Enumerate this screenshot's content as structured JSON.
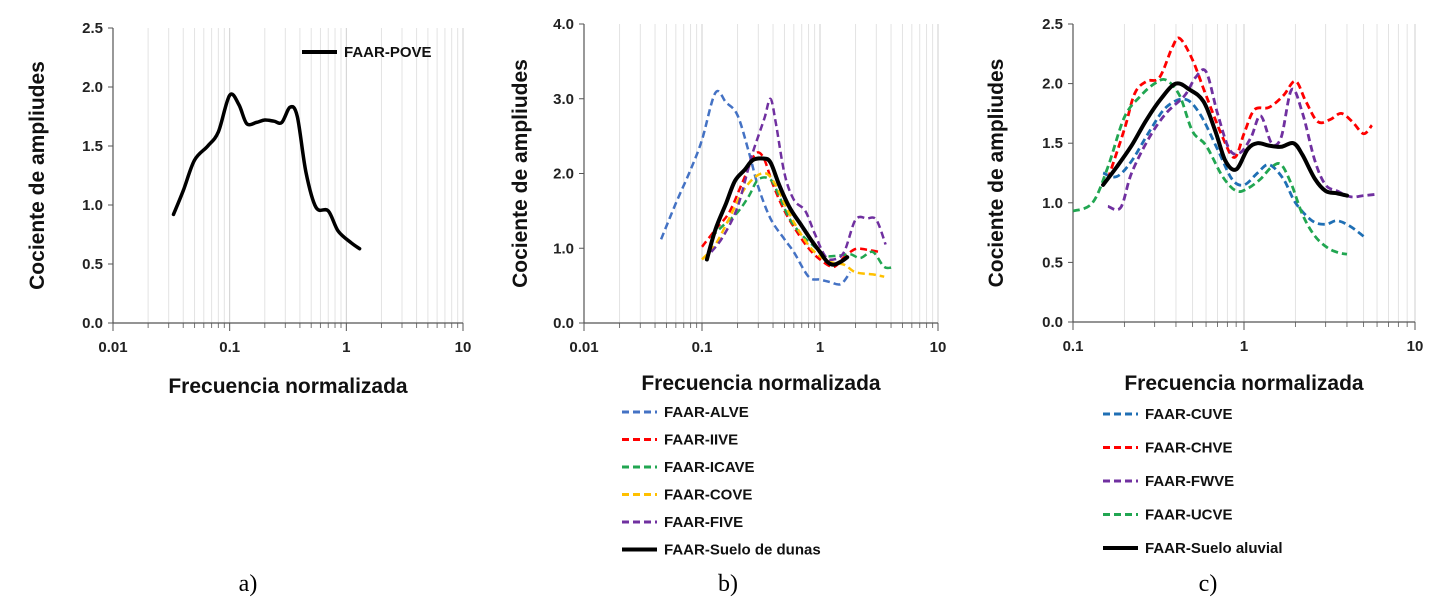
{
  "figure": {
    "captions": [
      "a)",
      "b)",
      "c)"
    ]
  },
  "chart_data": [
    {
      "type": "line",
      "xlabel": "Frecuencia normalizada",
      "ylabel": "Cociente de ampliudes",
      "xscale": "log",
      "xlim": [
        0.01,
        10
      ],
      "ylim": [
        0,
        2.5
      ],
      "xticks": [
        "0.01",
        "0.1",
        "1",
        "10"
      ],
      "yticks": [
        "0.0",
        "0.5",
        "1.0",
        "1.5",
        "2.0",
        "2.5"
      ],
      "legend_position": "top-right",
      "series": [
        {
          "name": "FAAR-POVE",
          "color": "#000000",
          "dash": "solid",
          "width": 3.5,
          "points": [
            [
              0.033,
              0.92
            ],
            [
              0.04,
              1.12
            ],
            [
              0.05,
              1.38
            ],
            [
              0.065,
              1.5
            ],
            [
              0.08,
              1.62
            ],
            [
              0.1,
              1.93
            ],
            [
              0.12,
              1.85
            ],
            [
              0.14,
              1.69
            ],
            [
              0.17,
              1.7
            ],
            [
              0.2,
              1.72
            ],
            [
              0.24,
              1.71
            ],
            [
              0.28,
              1.7
            ],
            [
              0.33,
              1.83
            ],
            [
              0.38,
              1.75
            ],
            [
              0.45,
              1.28
            ],
            [
              0.55,
              0.98
            ],
            [
              0.7,
              0.95
            ],
            [
              0.85,
              0.78
            ],
            [
              1.1,
              0.68
            ],
            [
              1.3,
              0.63
            ]
          ]
        }
      ]
    },
    {
      "type": "line",
      "xlabel": "Frecuencia normalizada",
      "ylabel": "Cociente de ampliudes",
      "xscale": "log",
      "xlim": [
        0.01,
        10
      ],
      "ylim": [
        0,
        4
      ],
      "xticks": [
        "0.01",
        "0.1",
        "1",
        "10"
      ],
      "yticks": [
        "0.0",
        "1.0",
        "2.0",
        "3.0",
        "4.0"
      ],
      "legend_position": "bottom",
      "series": [
        {
          "name": "FAAR-ALVE",
          "color": "#4472C4",
          "dash": "dashed",
          "width": 2.5,
          "points": [
            [
              0.045,
              1.12
            ],
            [
              0.06,
              1.6
            ],
            [
              0.08,
              2.05
            ],
            [
              0.1,
              2.45
            ],
            [
              0.13,
              3.08
            ],
            [
              0.16,
              2.95
            ],
            [
              0.2,
              2.78
            ],
            [
              0.25,
              2.28
            ],
            [
              0.3,
              1.82
            ],
            [
              0.38,
              1.4
            ],
            [
              0.5,
              1.12
            ],
            [
              0.6,
              0.95
            ],
            [
              0.8,
              0.62
            ],
            [
              1.0,
              0.58
            ],
            [
              1.2,
              0.55
            ],
            [
              1.5,
              0.52
            ],
            [
              1.8,
              0.68
            ]
          ]
        },
        {
          "name": "FAAR-IIVE",
          "color": "#FF0000",
          "dash": "dashed",
          "width": 2.5,
          "points": [
            [
              0.1,
              1.02
            ],
            [
              0.13,
              1.25
            ],
            [
              0.17,
              1.48
            ],
            [
              0.22,
              1.88
            ],
            [
              0.28,
              2.25
            ],
            [
              0.33,
              2.22
            ],
            [
              0.4,
              1.85
            ],
            [
              0.5,
              1.5
            ],
            [
              0.65,
              1.2
            ],
            [
              0.8,
              1.0
            ],
            [
              1.0,
              0.85
            ],
            [
              1.3,
              0.75
            ],
            [
              1.6,
              0.88
            ],
            [
              2.0,
              0.99
            ],
            [
              2.5,
              0.98
            ],
            [
              3.2,
              0.95
            ]
          ]
        },
        {
          "name": "FAAR-ICAVE",
          "color": "#21A651",
          "dash": "dashed",
          "width": 2.5,
          "points": [
            [
              0.12,
              1.15
            ],
            [
              0.15,
              1.3
            ],
            [
              0.2,
              1.48
            ],
            [
              0.25,
              1.7
            ],
            [
              0.3,
              1.92
            ],
            [
              0.38,
              1.92
            ],
            [
              0.45,
              1.7
            ],
            [
              0.55,
              1.4
            ],
            [
              0.7,
              1.18
            ],
            [
              0.9,
              1.02
            ],
            [
              1.1,
              0.9
            ],
            [
              1.4,
              0.9
            ],
            [
              1.8,
              0.92
            ],
            [
              2.2,
              0.87
            ],
            [
              2.8,
              0.95
            ],
            [
              3.5,
              0.75
            ],
            [
              4.2,
              0.75
            ]
          ]
        },
        {
          "name": "FAAR-COVE",
          "color": "#FFC000",
          "dash": "dashed",
          "width": 2.5,
          "points": [
            [
              0.1,
              0.85
            ],
            [
              0.13,
              1.05
            ],
            [
              0.17,
              1.4
            ],
            [
              0.22,
              1.75
            ],
            [
              0.28,
              1.95
            ],
            [
              0.35,
              2.0
            ],
            [
              0.42,
              1.85
            ],
            [
              0.5,
              1.6
            ],
            [
              0.6,
              1.35
            ],
            [
              0.75,
              1.1
            ],
            [
              0.9,
              0.95
            ],
            [
              1.2,
              0.82
            ],
            [
              1.6,
              0.78
            ],
            [
              2.0,
              0.68
            ],
            [
              2.8,
              0.65
            ],
            [
              3.5,
              0.62
            ]
          ]
        },
        {
          "name": "FAAR-FIVE",
          "color": "#7030A0",
          "dash": "dashed",
          "width": 2.5,
          "points": [
            [
              0.12,
              0.95
            ],
            [
              0.15,
              1.15
            ],
            [
              0.2,
              1.55
            ],
            [
              0.26,
              2.2
            ],
            [
              0.3,
              2.5
            ],
            [
              0.34,
              2.75
            ],
            [
              0.38,
              3.0
            ],
            [
              0.42,
              2.7
            ],
            [
              0.5,
              2.0
            ],
            [
              0.6,
              1.65
            ],
            [
              0.75,
              1.5
            ],
            [
              0.9,
              1.2
            ],
            [
              1.1,
              0.9
            ],
            [
              1.3,
              0.85
            ],
            [
              1.6,
              0.95
            ],
            [
              2.0,
              1.38
            ],
            [
              2.5,
              1.4
            ],
            [
              3.0,
              1.38
            ],
            [
              3.6,
              1.05
            ]
          ]
        },
        {
          "name": "FAAR-Suelo de dunas",
          "color": "#000000",
          "dash": "solid",
          "width": 4,
          "points": [
            [
              0.11,
              0.85
            ],
            [
              0.13,
              1.25
            ],
            [
              0.16,
              1.6
            ],
            [
              0.19,
              1.9
            ],
            [
              0.23,
              2.05
            ],
            [
              0.27,
              2.18
            ],
            [
              0.33,
              2.2
            ],
            [
              0.38,
              2.15
            ],
            [
              0.45,
              1.85
            ],
            [
              0.55,
              1.55
            ],
            [
              0.7,
              1.3
            ],
            [
              0.85,
              1.1
            ],
            [
              1.0,
              0.95
            ],
            [
              1.15,
              0.82
            ],
            [
              1.3,
              0.78
            ],
            [
              1.5,
              0.82
            ],
            [
              1.7,
              0.88
            ]
          ]
        }
      ]
    },
    {
      "type": "line",
      "xlabel": "Frecuencia normalizada",
      "ylabel": "Cociente de ampliudes",
      "xscale": "log",
      "xlim": [
        0.1,
        10
      ],
      "ylim": [
        0,
        2.5
      ],
      "xticks": [
        "0.1",
        "1",
        "10"
      ],
      "yticks": [
        "0.0",
        "0.5",
        "1.0",
        "1.5",
        "2.0",
        "2.5"
      ],
      "legend_position": "bottom",
      "series": [
        {
          "name": "FAAR-CUVE",
          "color": "#1F6FB4",
          "dash": "dashed",
          "width": 2.8,
          "points": [
            [
              0.15,
              1.25
            ],
            [
              0.18,
              1.22
            ],
            [
              0.22,
              1.35
            ],
            [
              0.28,
              1.6
            ],
            [
              0.35,
              1.8
            ],
            [
              0.45,
              1.87
            ],
            [
              0.55,
              1.75
            ],
            [
              0.7,
              1.45
            ],
            [
              0.85,
              1.2
            ],
            [
              1.0,
              1.15
            ],
            [
              1.2,
              1.25
            ],
            [
              1.4,
              1.32
            ],
            [
              1.7,
              1.2
            ],
            [
              2.0,
              1.0
            ],
            [
              2.5,
              0.85
            ],
            [
              3.0,
              0.82
            ],
            [
              3.5,
              0.85
            ],
            [
              4.2,
              0.8
            ],
            [
              5.2,
              0.7
            ]
          ]
        },
        {
          "name": "FAAR-CHVE",
          "color": "#FF0000",
          "dash": "dashed",
          "width": 2.8,
          "points": [
            [
              0.16,
              1.2
            ],
            [
              0.2,
              1.62
            ],
            [
              0.23,
              1.92
            ],
            [
              0.27,
              2.02
            ],
            [
              0.32,
              2.05
            ],
            [
              0.38,
              2.3
            ],
            [
              0.42,
              2.38
            ],
            [
              0.5,
              2.2
            ],
            [
              0.6,
              1.9
            ],
            [
              0.75,
              1.55
            ],
            [
              0.88,
              1.38
            ],
            [
              1.0,
              1.58
            ],
            [
              1.15,
              1.78
            ],
            [
              1.4,
              1.8
            ],
            [
              1.7,
              1.9
            ],
            [
              2.0,
              2.02
            ],
            [
              2.3,
              1.85
            ],
            [
              2.7,
              1.68
            ],
            [
              3.2,
              1.7
            ],
            [
              3.7,
              1.75
            ],
            [
              4.3,
              1.68
            ],
            [
              5.0,
              1.58
            ],
            [
              5.6,
              1.65
            ]
          ]
        },
        {
          "name": "FAAR-FWVE",
          "color": "#7030A0",
          "dash": "dashed",
          "width": 2.8,
          "points": [
            [
              0.16,
              0.97
            ],
            [
              0.19,
              0.96
            ],
            [
              0.22,
              1.25
            ],
            [
              0.28,
              1.55
            ],
            [
              0.35,
              1.75
            ],
            [
              0.45,
              1.9
            ],
            [
              0.52,
              2.05
            ],
            [
              0.6,
              2.1
            ],
            [
              0.7,
              1.75
            ],
            [
              0.82,
              1.45
            ],
            [
              0.95,
              1.42
            ],
            [
              1.1,
              1.55
            ],
            [
              1.25,
              1.73
            ],
            [
              1.45,
              1.5
            ],
            [
              1.65,
              1.55
            ],
            [
              1.9,
              1.95
            ],
            [
              2.2,
              1.75
            ],
            [
              2.6,
              1.35
            ],
            [
              3.0,
              1.15
            ],
            [
              3.5,
              1.1
            ],
            [
              4.2,
              1.05
            ],
            [
              5.0,
              1.06
            ],
            [
              5.8,
              1.07
            ]
          ]
        },
        {
          "name": "FAAR-UCVE",
          "color": "#21A651",
          "dash": "dashed",
          "width": 2.8,
          "points": [
            [
              0.1,
              0.93
            ],
            [
              0.13,
              1.0
            ],
            [
              0.16,
              1.3
            ],
            [
              0.2,
              1.72
            ],
            [
              0.25,
              1.9
            ],
            [
              0.3,
              2.0
            ],
            [
              0.35,
              2.03
            ],
            [
              0.42,
              1.9
            ],
            [
              0.5,
              1.6
            ],
            [
              0.6,
              1.48
            ],
            [
              0.75,
              1.22
            ],
            [
              0.9,
              1.1
            ],
            [
              1.05,
              1.12
            ],
            [
              1.25,
              1.2
            ],
            [
              1.45,
              1.3
            ],
            [
              1.65,
              1.32
            ],
            [
              1.9,
              1.15
            ],
            [
              2.2,
              0.9
            ],
            [
              2.6,
              0.72
            ],
            [
              3.1,
              0.62
            ],
            [
              3.6,
              0.58
            ],
            [
              4.0,
              0.57
            ]
          ]
        },
        {
          "name": "FAAR-Suelo aluvial",
          "color": "#000000",
          "dash": "solid",
          "width": 4,
          "points": [
            [
              0.15,
              1.15
            ],
            [
              0.18,
              1.3
            ],
            [
              0.22,
              1.48
            ],
            [
              0.27,
              1.7
            ],
            [
              0.33,
              1.88
            ],
            [
              0.4,
              2.0
            ],
            [
              0.48,
              1.95
            ],
            [
              0.58,
              1.85
            ],
            [
              0.68,
              1.6
            ],
            [
              0.78,
              1.35
            ],
            [
              0.9,
              1.28
            ],
            [
              1.05,
              1.45
            ],
            [
              1.2,
              1.5
            ],
            [
              1.4,
              1.48
            ],
            [
              1.65,
              1.47
            ],
            [
              1.95,
              1.5
            ],
            [
              2.2,
              1.4
            ],
            [
              2.6,
              1.2
            ],
            [
              3.0,
              1.1
            ],
            [
              3.5,
              1.08
            ],
            [
              4.0,
              1.06
            ]
          ]
        }
      ]
    }
  ]
}
